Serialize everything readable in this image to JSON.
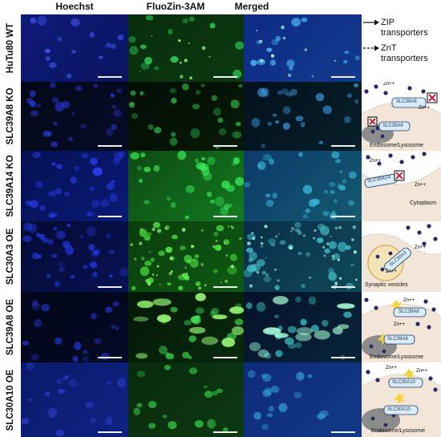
{
  "columns": {
    "hoechst": "Hoechst",
    "fluozin": "FluoZin-3AM",
    "merged": "Merged"
  },
  "rows": [
    {
      "label": "HuTu80 WT"
    },
    {
      "label": "SLC39A8 KO"
    },
    {
      "label": "SLC39A14 KO"
    },
    {
      "label": "SLC30A3 OE"
    },
    {
      "label": "SLC39A8 OE"
    },
    {
      "label": "SLC30A10 OE"
    }
  ],
  "legend": {
    "zip_line1": "ZIP",
    "zip_line2": "transporters",
    "znt_line1": "ZnT",
    "znt_line2": "transporters"
  },
  "cartoons": {
    "slc39a8_ko": {
      "zn1": "Zn++",
      "zn2": "Zn++",
      "protein1": "SLC39A8",
      "protein2": "SLC39A8",
      "organelle": "Endosome/Lysosome"
    },
    "slc39a14_ko": {
      "zn1": "Zn++",
      "zn2": "Zn++",
      "protein": "SLC39A14",
      "compartment": "Cytoplasm"
    },
    "slc30a3_oe": {
      "zn1": "Zn++",
      "zn2": "Zn++",
      "protein": "SLC30A3",
      "organelle": "Synaptic vesicles"
    },
    "slc39a8_oe": {
      "zn1": "Zn++",
      "zn2": "Zn++",
      "protein1": "SLC39A8",
      "protein2": "SLC39A8",
      "organelle": "Endosome/Lysosome"
    },
    "slc30a10_oe": {
      "zn1": "Zn++",
      "zn2": "Zn++",
      "protein1": "SLC30A10",
      "protein2": "SLC30A10",
      "organelle": "Endosome/Lysosome"
    }
  }
}
